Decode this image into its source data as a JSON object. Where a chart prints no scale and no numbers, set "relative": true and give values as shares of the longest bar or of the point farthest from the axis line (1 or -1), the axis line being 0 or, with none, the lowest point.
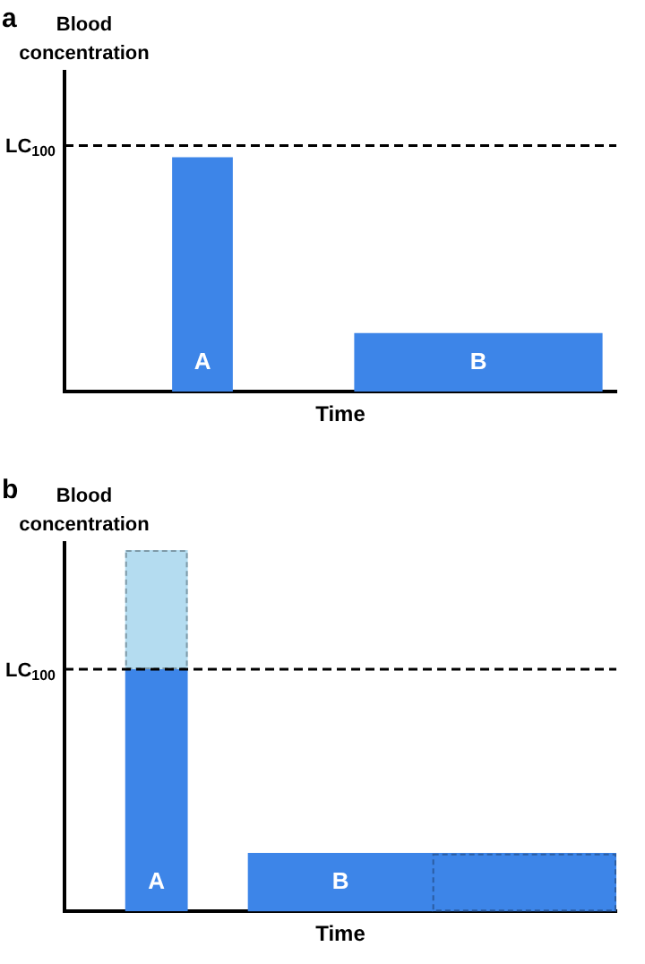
{
  "chart_data": [
    {
      "type": "bar",
      "title": "a",
      "ylabel": "Blood concentration",
      "xlabel": "Time",
      "relative": true,
      "grid": false,
      "legend": false,
      "categories": [
        "A",
        "B"
      ],
      "series": [
        {
          "color": "#3d85e8",
          "values": [
            1,
            0.25
          ]
        }
      ],
      "ref_lines": [
        {
          "axis": "y",
          "value": 1.05,
          "label": "LC$_{100}$",
          "color": "#000000",
          "line_style": "dashed"
        }
      ]
    },
    {
      "type": "bar",
      "title": "b",
      "ylabel": "Blood concentration",
      "xlabel": "Time",
      "relative": true,
      "grid": false,
      "legend": false,
      "stacked": true,
      "categories": [
        "A",
        "B",
        null
      ],
      "series": [
        {
          "color": "#3d85e8",
          "values": [
            0.67,
            0.16,
            null
          ]
        },
        {
          "color": "#b4dcf0",
          "values": [
            0.33,
            null,
            null
          ],
          "line_style": "dashed"
        },
        {
          "color": "#3d85e8",
          "values": [
            null,
            null,
            0.16
          ],
          "line_style": "dashed"
        }
      ],
      "ref_lines": [
        {
          "axis": "y",
          "value": 0.67,
          "label": "LC$_{100}$",
          "color": "#000000",
          "line_style": "dashed"
        }
      ]
    }
  ]
}
